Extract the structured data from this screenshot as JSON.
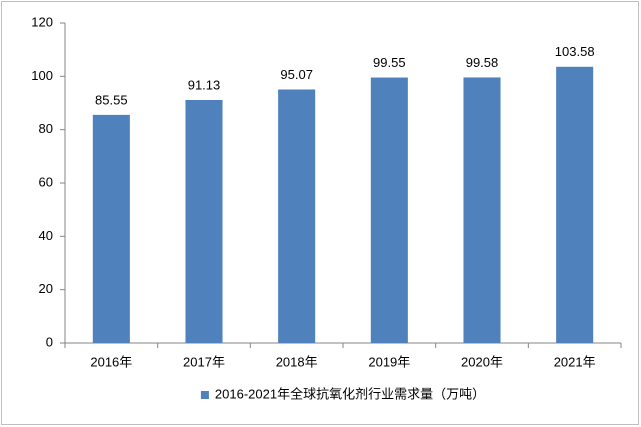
{
  "chart_data": {
    "type": "bar",
    "categories": [
      "2016年",
      "2017年",
      "2018年",
      "2019年",
      "2020年",
      "2021年"
    ],
    "series": [
      {
        "name": "2016-2021年全球抗氧化剂行业需求量（万吨）",
        "color": "#4f81bd",
        "values": [
          85.55,
          91.13,
          95.07,
          99.55,
          99.58,
          103.58
        ]
      }
    ],
    "ylim": [
      0,
      120
    ],
    "yticks": [
      0,
      20,
      40,
      60,
      80,
      100,
      120
    ],
    "grid": false,
    "legend": "bottom"
  }
}
